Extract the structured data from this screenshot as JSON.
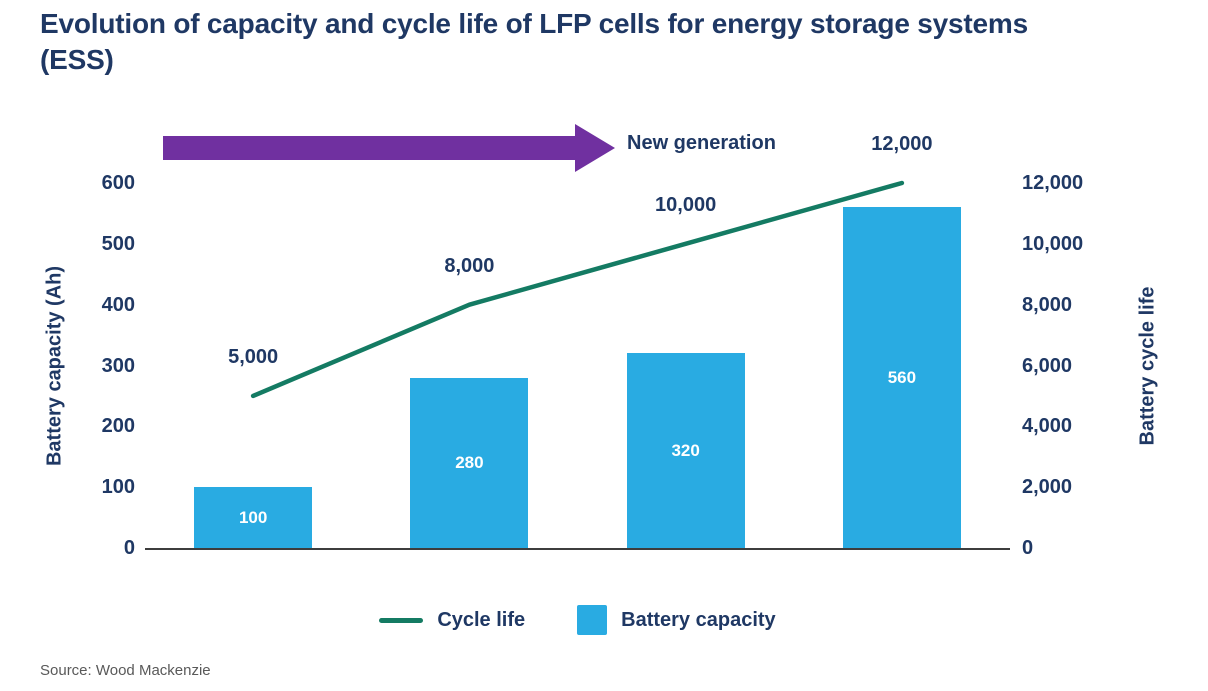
{
  "title": "Evolution of capacity and cycle life of LFP cells for energy storage systems (ESS)",
  "annotation": {
    "arrow_label": "New generation",
    "arrow_color": "#7030A0"
  },
  "legend": {
    "items": [
      {
        "label": "Cycle life",
        "swatch": "line",
        "color": "#147B63"
      },
      {
        "label": "Battery capacity",
        "swatch": "square",
        "color": "#29ABE2"
      }
    ],
    "position": "bottom"
  },
  "source": "Source: Wood Mackenzie",
  "colors": {
    "bar": "#29ABE2",
    "line": "#147B63",
    "arrow": "#7030A0",
    "text_navy": "#1F3864",
    "source_text": "#595959"
  },
  "chart_data": {
    "type": "combo",
    "title": "Evolution of capacity and cycle life of LFP cells for energy storage systems (ESS)",
    "series": [
      {
        "name": "Battery capacity",
        "type": "bar",
        "axis": "left",
        "color": "#29ABE2",
        "values": [
          100,
          280,
          320,
          560
        ],
        "data_labels": [
          "100",
          "280",
          "320",
          "560"
        ]
      },
      {
        "name": "Cycle life",
        "type": "line",
        "axis": "right",
        "color": "#147B63",
        "values": [
          5000,
          8000,
          10000,
          12000
        ],
        "data_labels": [
          "5,000",
          "8,000",
          "10,000",
          "12,000"
        ]
      }
    ],
    "left_axis": {
      "label": "Battery capacity (Ah)",
      "min": 0,
      "max": 600,
      "tick_step": 100,
      "ticks": [
        "0",
        "100",
        "200",
        "300",
        "400",
        "500",
        "600"
      ]
    },
    "right_axis": {
      "label": "Battery cycle life",
      "min": 0,
      "max": 12000,
      "tick_step": 2000,
      "ticks": [
        "0",
        "2,000",
        "4,000",
        "6,000",
        "8,000",
        "10,000",
        "12,000"
      ]
    },
    "grid": false,
    "legend_position": "bottom",
    "annotations": [
      {
        "type": "arrow",
        "label": "New generation",
        "color": "#7030A0",
        "position": "top-left"
      }
    ]
  }
}
